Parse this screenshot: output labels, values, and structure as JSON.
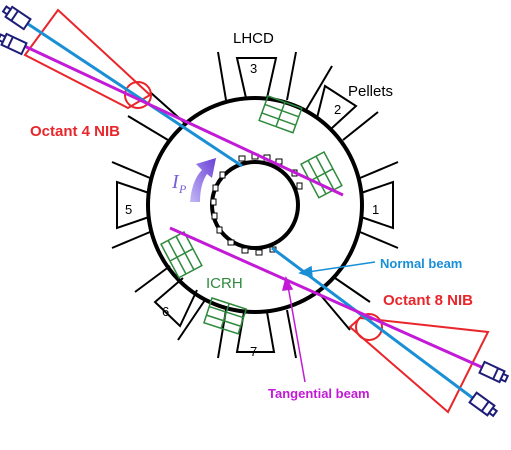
{
  "labels": {
    "lhcd": "LHCD",
    "pellets": "Pellets",
    "octant4": "Octant 4 NIB",
    "octant8": "Octant 8 NIB",
    "normal_beam": "Normal beam",
    "tangential_beam": "Tangential beam",
    "icrh": "ICRH",
    "plasma_current_symbol": "I",
    "plasma_current_subscript": "P"
  },
  "ports": [
    "1",
    "2",
    "3",
    "5",
    "6",
    "7"
  ],
  "colors": {
    "injector_red": "#e8262b",
    "normal_beam_blue": "#1a8fd6",
    "tangential_beam_magenta": "#c21ad6",
    "icrh_green": "#2e8a3c",
    "source_navy": "#1e1e78",
    "ip_arrow": "#7a5cd6"
  }
}
